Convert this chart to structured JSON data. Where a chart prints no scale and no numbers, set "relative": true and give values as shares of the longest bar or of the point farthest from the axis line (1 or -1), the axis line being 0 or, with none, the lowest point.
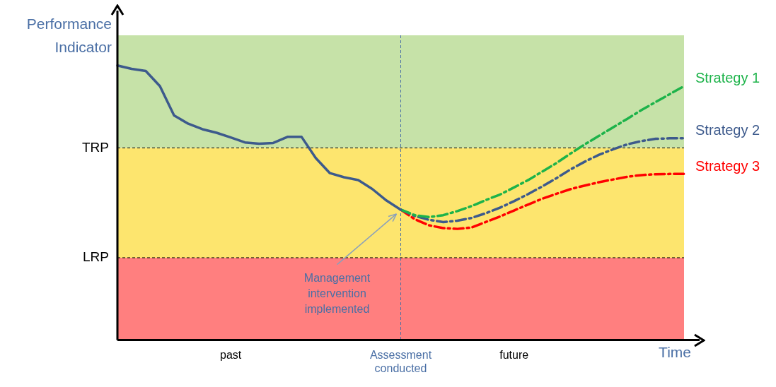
{
  "chart_data": {
    "type": "line",
    "relative": true,
    "xlabel": "Time",
    "ylabel": "Performance Indicator",
    "legend": false,
    "tick_labels": "x",
    "categories": [
      null,
      null,
      null,
      null,
      null,
      null,
      null,
      null,
      "past",
      null,
      null,
      null,
      null,
      null,
      null,
      null,
      null,
      null,
      null,
      null,
      "Assessment conducted",
      null,
      null,
      null,
      null,
      null,
      null,
      null,
      "future",
      null,
      null,
      null,
      null,
      null,
      null,
      null,
      null,
      null,
      null,
      null,
      null
    ],
    "series": [
      {
        "color": "#3d5a8c",
        "line_style": "solid",
        "values": [
          1.0,
          0.988,
          0.98,
          0.925,
          0.818,
          0.788,
          0.768,
          0.755,
          0.738,
          0.72,
          0.715,
          0.718,
          0.74,
          0.74,
          0.663,
          0.608,
          0.593,
          0.583,
          0.55,
          0.508,
          0.475,
          null,
          null,
          null,
          null,
          null,
          null,
          null,
          null,
          null,
          null,
          null,
          null,
          null,
          null,
          null,
          null,
          null,
          null,
          null,
          null
        ]
      },
      {
        "name": "Strategy 1",
        "color": "#1db34a",
        "line_style": "dashed",
        "values": [
          null,
          null,
          null,
          null,
          null,
          null,
          null,
          null,
          null,
          null,
          null,
          null,
          null,
          null,
          null,
          null,
          null,
          null,
          null,
          null,
          0.475,
          0.455,
          0.448,
          0.455,
          0.47,
          0.488,
          0.51,
          0.53,
          0.556,
          0.583,
          0.614,
          0.645,
          0.68,
          0.713,
          0.744,
          0.775,
          0.806,
          0.838,
          0.867,
          0.896,
          0.925
        ]
      },
      {
        "name": "Strategy 2",
        "color": "#3d5a8c",
        "line_style": "dashed",
        "values": [
          null,
          null,
          null,
          null,
          null,
          null,
          null,
          null,
          null,
          null,
          null,
          null,
          null,
          null,
          null,
          null,
          null,
          null,
          null,
          null,
          0.475,
          0.452,
          0.438,
          0.43,
          0.435,
          0.445,
          0.462,
          0.482,
          0.506,
          0.532,
          0.56,
          0.59,
          0.622,
          0.65,
          0.675,
          0.695,
          0.713,
          0.725,
          0.733,
          0.735,
          0.735
        ]
      },
      {
        "name": "Strategy 3",
        "color": "#ff0000",
        "line_style": "dashed",
        "values": [
          null,
          null,
          null,
          null,
          null,
          null,
          null,
          null,
          null,
          null,
          null,
          null,
          null,
          null,
          null,
          null,
          null,
          null,
          null,
          null,
          0.475,
          0.44,
          0.418,
          0.408,
          0.405,
          0.41,
          0.43,
          0.45,
          0.472,
          0.494,
          0.515,
          0.533,
          0.55,
          0.563,
          0.575,
          0.585,
          0.595,
          0.601,
          0.604,
          0.605,
          0.605
        ]
      }
    ],
    "bands": [
      {
        "axis": "y",
        "from": 0.7,
        "to": 1.11,
        "color": "#c6e2a8"
      },
      {
        "axis": "y",
        "from": 0.3,
        "to": 0.7,
        "color": "#fde56e"
      },
      {
        "axis": "y",
        "from": 0,
        "to": 0.3,
        "color": "#ff7f7f"
      }
    ],
    "ref_lines": [
      {
        "axis": "y",
        "value": 0.7,
        "label": "TRP",
        "line_style": "dashed",
        "color": "#000000"
      },
      {
        "axis": "y",
        "value": 0.3,
        "label": "LRP",
        "line_style": "dashed",
        "color": "#000000"
      },
      {
        "axis": "x",
        "value": "Assessment conducted",
        "line_style": "dashed",
        "color": "#4a6fa5"
      }
    ],
    "annotations": [
      {
        "text": "Management intervention implemented",
        "x": "Assessment conducted",
        "y": 0.475
      }
    ]
  }
}
